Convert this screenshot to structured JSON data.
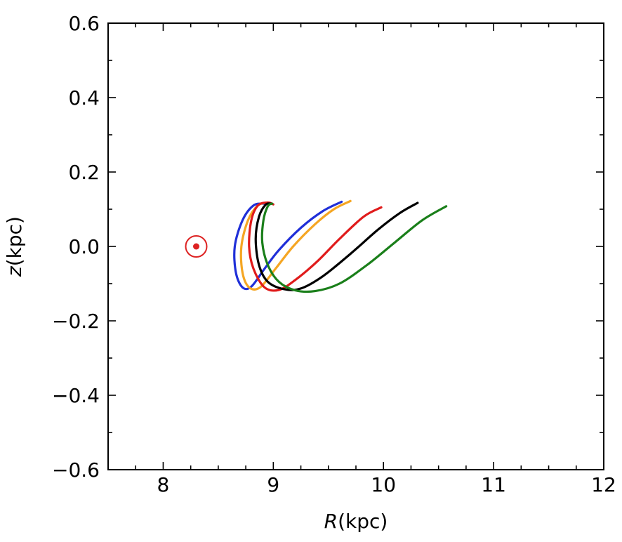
{
  "chart_data": {
    "type": "line",
    "title": "",
    "xlabel": "R(kpc)",
    "ylabel": "z(kpc)",
    "xlabel_italic": "R",
    "xlabel_unit": "(kpc)",
    "ylabel_italic": "z",
    "ylabel_unit": "(kpc)",
    "xlim": [
      7.5,
      12
    ],
    "ylim": [
      -0.6,
      0.6
    ],
    "xticks": [
      8,
      9,
      10,
      11,
      12
    ],
    "xtick_labels": [
      "8",
      "9",
      "10",
      "11",
      "12"
    ],
    "yticks": [
      -0.6,
      -0.4,
      -0.2,
      0.0,
      0.2,
      0.4,
      0.6
    ],
    "ytick_labels": [
      "−0.6",
      "−0.4",
      "−0.2",
      "0.0",
      "0.2",
      "0.4",
      "0.6"
    ],
    "x_minor_step": 0.25,
    "y_minor_step": 0.1,
    "grid": false,
    "sun_marker": {
      "x": 8.3,
      "y": 0.0,
      "color": "#dd2222"
    },
    "series": [
      {
        "color": "#1f2fd8",
        "points": [
          [
            9.62,
            0.12
          ],
          [
            9.45,
            0.095
          ],
          [
            9.25,
            0.05
          ],
          [
            9.05,
            -0.01
          ],
          [
            8.92,
            -0.06
          ],
          [
            8.8,
            -0.108
          ],
          [
            8.72,
            -0.11
          ],
          [
            8.66,
            -0.07
          ],
          [
            8.65,
            0.0
          ],
          [
            8.72,
            0.07
          ],
          [
            8.82,
            0.11
          ],
          [
            8.92,
            0.115
          ]
        ]
      },
      {
        "color": "#f5a623",
        "points": [
          [
            9.7,
            0.122
          ],
          [
            9.55,
            0.1
          ],
          [
            9.38,
            0.06
          ],
          [
            9.18,
            0.0
          ],
          [
            9.02,
            -0.06
          ],
          [
            8.88,
            -0.11
          ],
          [
            8.78,
            -0.11
          ],
          [
            8.72,
            -0.07
          ],
          [
            8.71,
            0.0
          ],
          [
            8.77,
            0.07
          ],
          [
            8.86,
            0.11
          ],
          [
            8.95,
            0.118
          ]
        ]
      },
      {
        "color": "#e01b1b",
        "points": [
          [
            9.98,
            0.105
          ],
          [
            9.82,
            0.08
          ],
          [
            9.6,
            0.02
          ],
          [
            9.4,
            -0.04
          ],
          [
            9.2,
            -0.09
          ],
          [
            9.05,
            -0.117
          ],
          [
            8.92,
            -0.11
          ],
          [
            8.82,
            -0.06
          ],
          [
            8.78,
            0.0
          ],
          [
            8.8,
            0.07
          ],
          [
            8.86,
            0.11
          ],
          [
            8.95,
            0.118
          ],
          [
            9.0,
            0.113
          ]
        ]
      },
      {
        "color": "#000000",
        "points": [
          [
            10.31,
            0.117
          ],
          [
            10.15,
            0.09
          ],
          [
            9.95,
            0.045
          ],
          [
            9.7,
            -0.02
          ],
          [
            9.45,
            -0.08
          ],
          [
            9.25,
            -0.113
          ],
          [
            9.1,
            -0.115
          ],
          [
            8.95,
            -0.095
          ],
          [
            8.87,
            -0.05
          ],
          [
            8.84,
            0.02
          ],
          [
            8.87,
            0.08
          ],
          [
            8.93,
            0.112
          ],
          [
            8.98,
            0.115
          ]
        ]
      },
      {
        "color": "#1a7f1a",
        "points": [
          [
            10.57,
            0.108
          ],
          [
            10.35,
            0.07
          ],
          [
            10.1,
            0.01
          ],
          [
            9.85,
            -0.05
          ],
          [
            9.6,
            -0.1
          ],
          [
            9.38,
            -0.12
          ],
          [
            9.2,
            -0.118
          ],
          [
            9.05,
            -0.095
          ],
          [
            8.95,
            -0.05
          ],
          [
            8.9,
            0.01
          ],
          [
            8.91,
            0.07
          ],
          [
            8.95,
            0.108
          ],
          [
            8.99,
            0.115
          ]
        ]
      }
    ]
  }
}
